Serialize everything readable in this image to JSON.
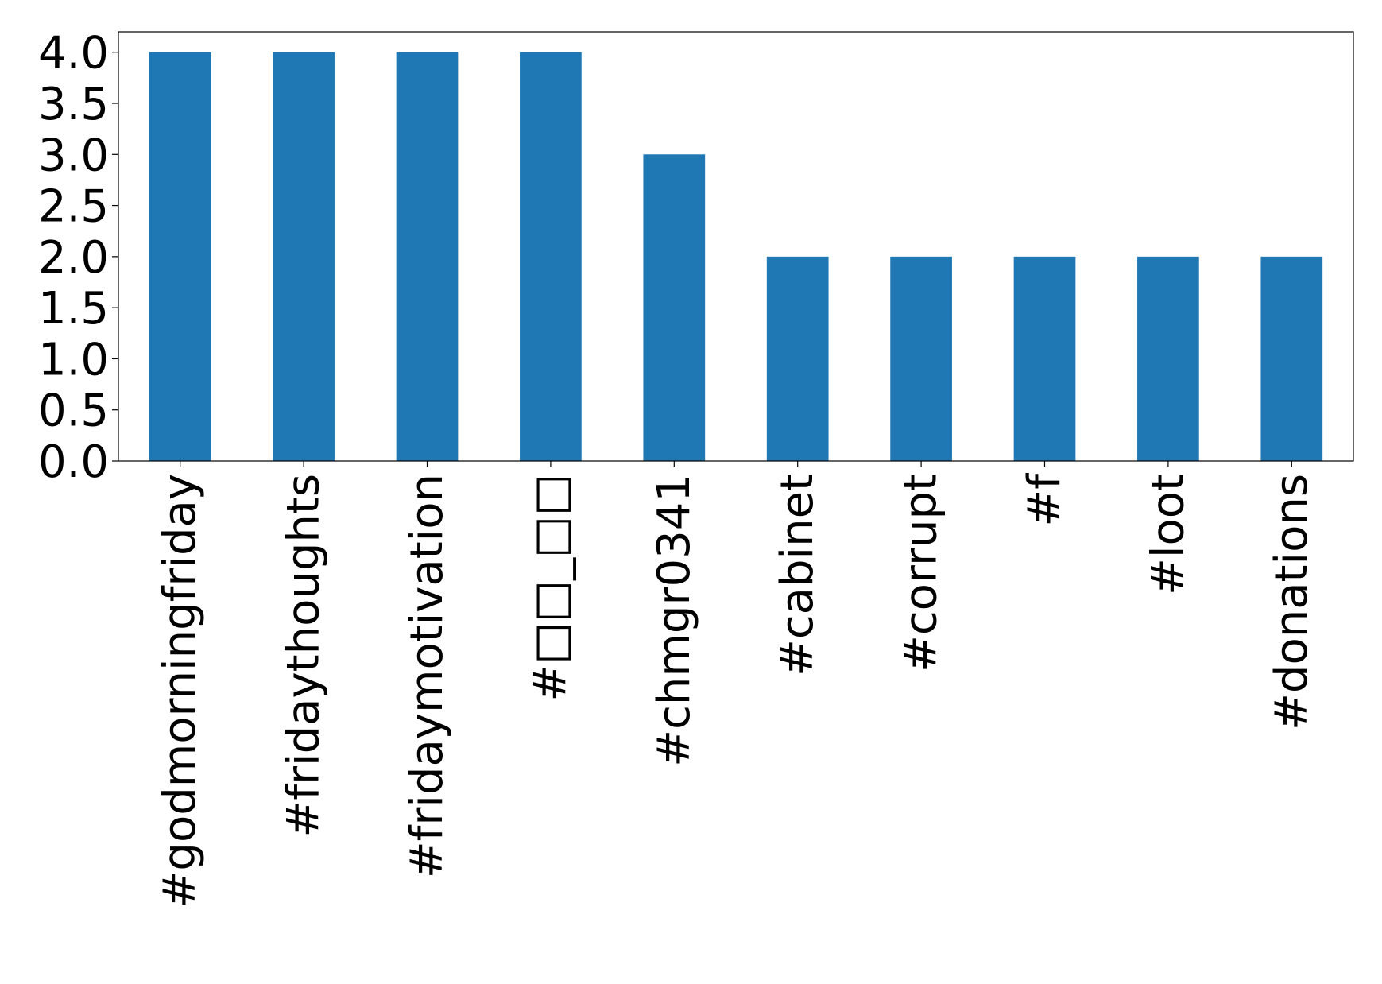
{
  "chart_data": {
    "type": "bar",
    "categories": [
      "#godmorningfriday",
      "#fridaythoughts",
      "#fridaymotivation",
      "#□□_□□",
      "#chmgr0341",
      "#cabinet",
      "#corrupt",
      "#f",
      "#loot",
      "#donations"
    ],
    "values": [
      4,
      4,
      4,
      4,
      3,
      2,
      2,
      2,
      2,
      2
    ],
    "title": "",
    "xlabel": "",
    "ylabel": "",
    "ylim": [
      0,
      4.2
    ],
    "yticks": [
      "0.0",
      "0.5",
      "1.0",
      "1.5",
      "2.0",
      "2.5",
      "3.0",
      "3.5",
      "4.0"
    ],
    "grid": false,
    "bar_color": "#1f77b4"
  }
}
